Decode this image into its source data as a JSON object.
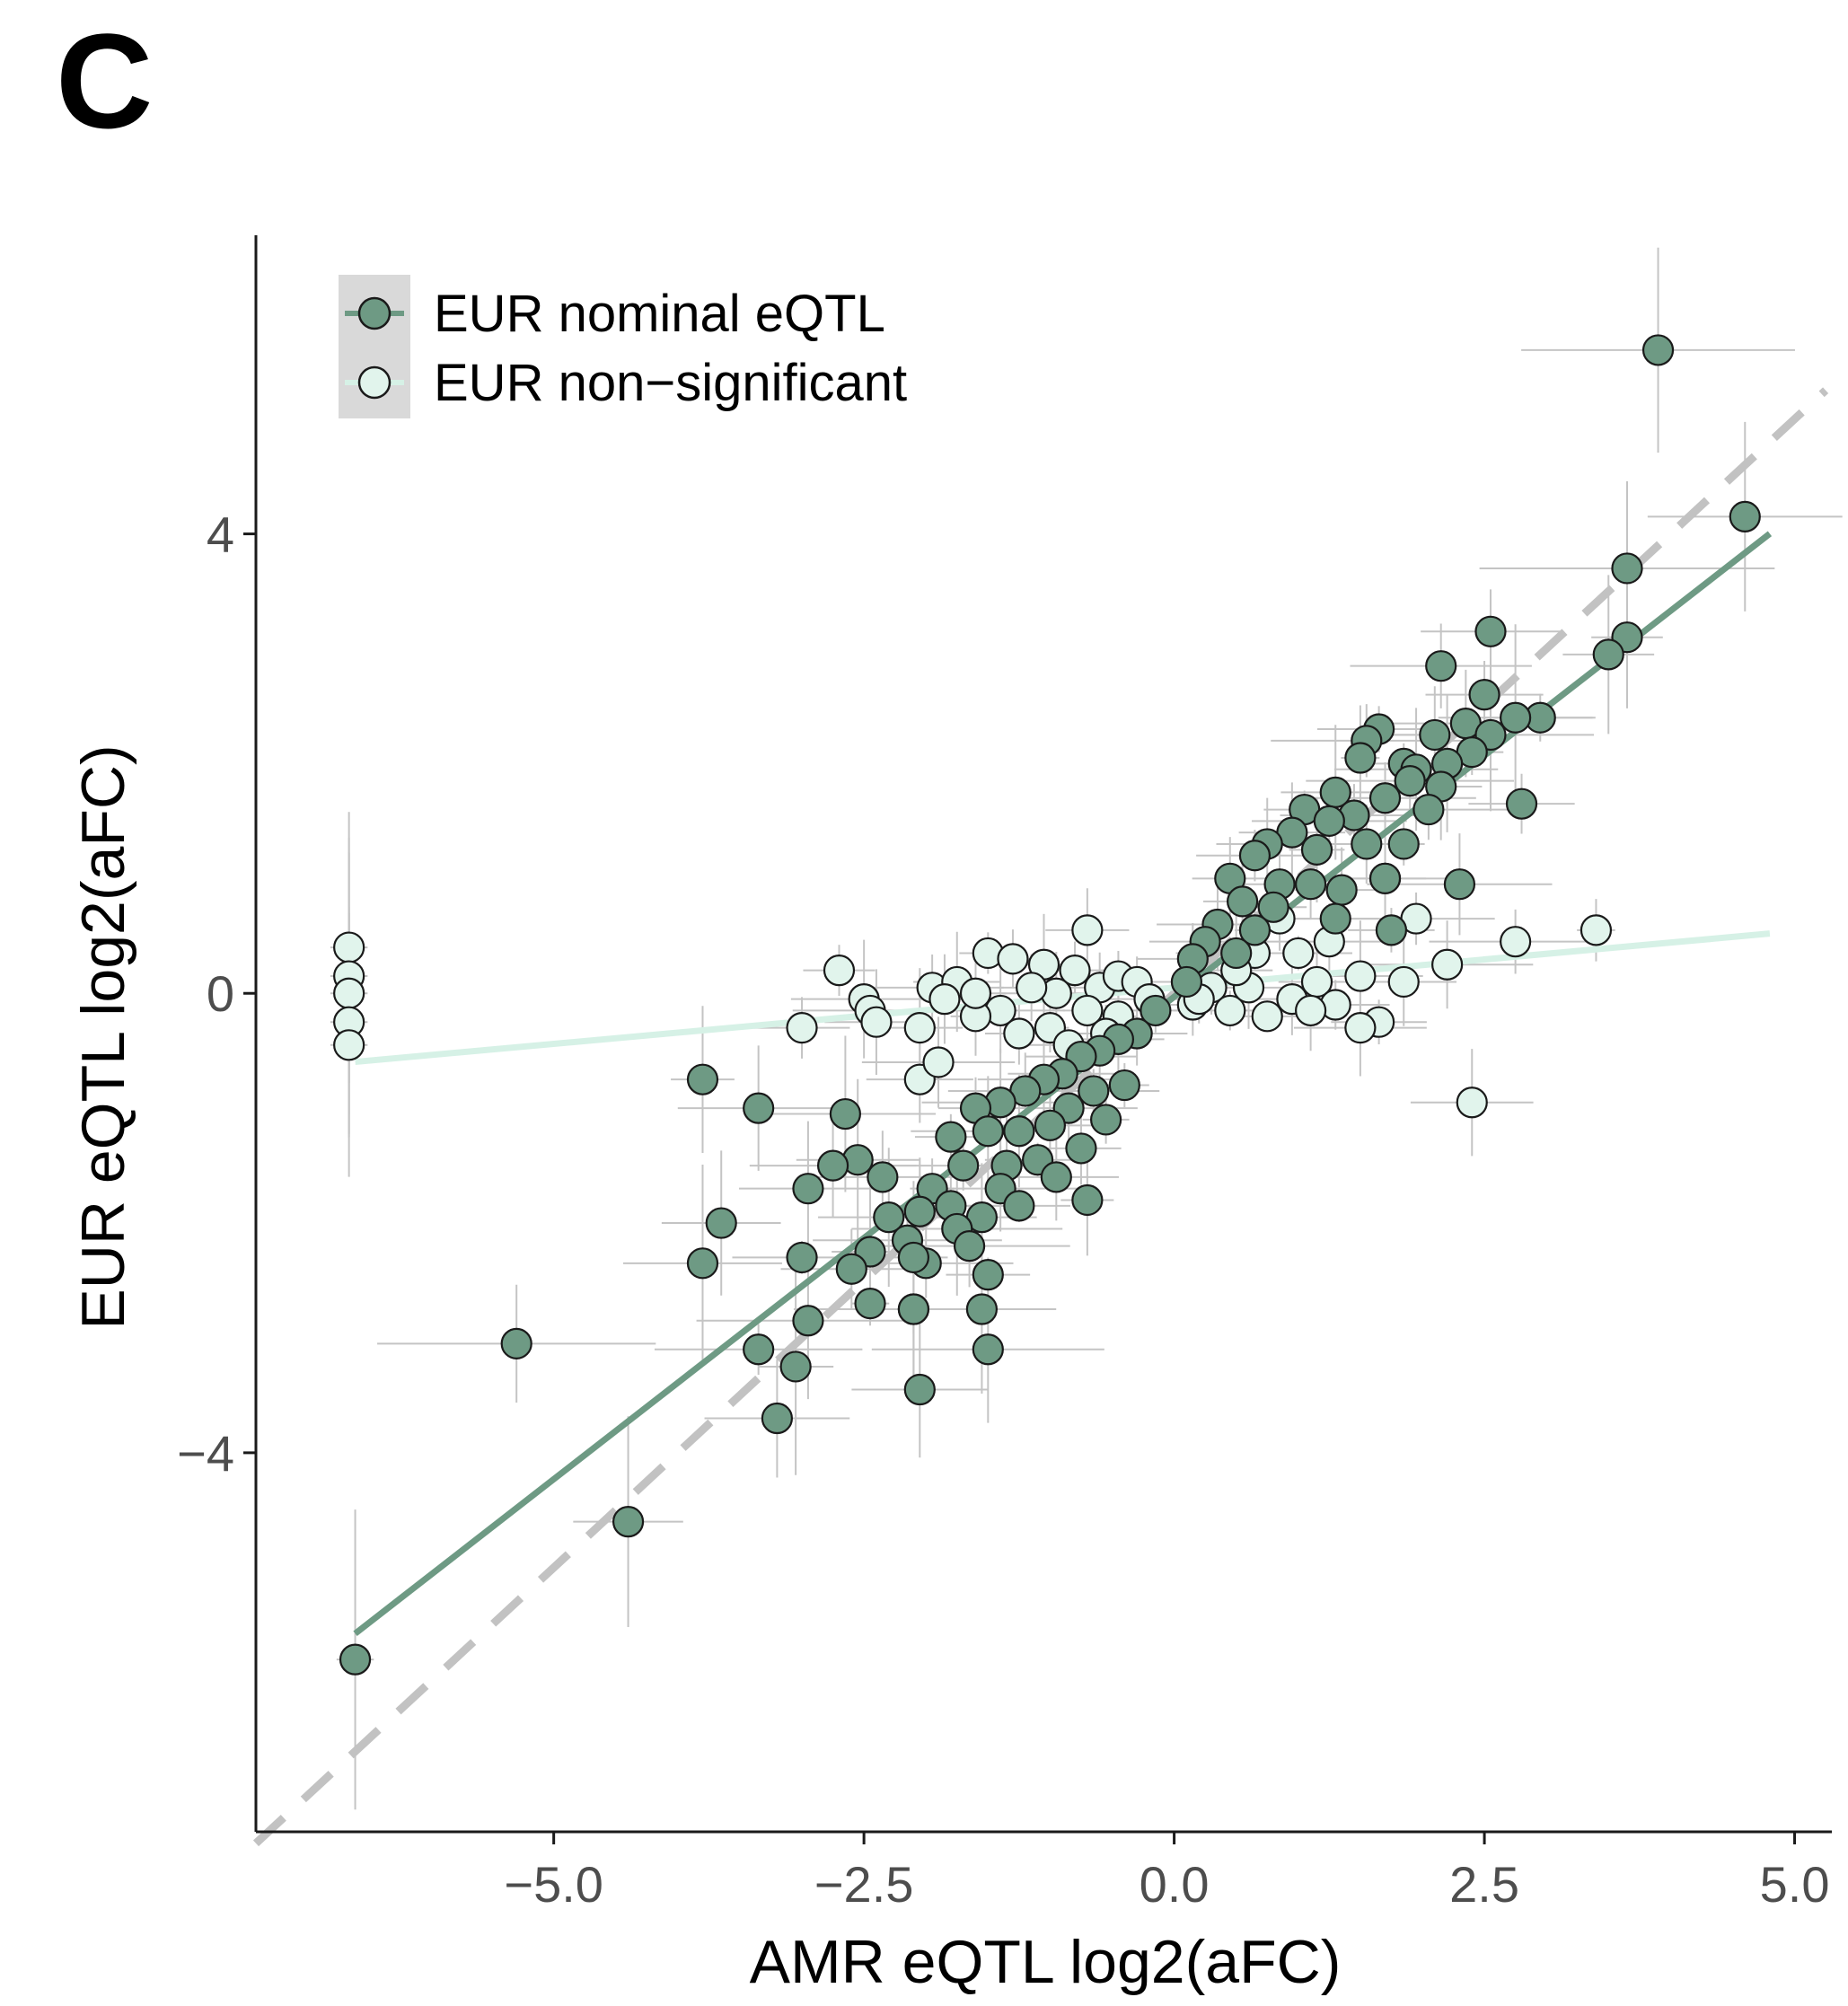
{
  "panel_label": "C",
  "colors": {
    "eqtl_fill": "#6e9a84",
    "eqtl_line": "#6e9a84",
    "nonsig_fill": "#e1f4ec",
    "nonsig_line": "#d6f1e6",
    "point_stroke": "#1a1a1a",
    "errorbar": "#c4c4c4",
    "identity_line": "#c2c2c2",
    "axis": "#1a1a1a",
    "legend_key_bg": "#d9d9d9"
  },
  "chart_data": {
    "type": "scatter",
    "title": "",
    "xlabel": "AMR eQTL log2(aFC)",
    "ylabel": "EUR eQTL log2(aFC)",
    "xlim": [
      -7.4,
      5.3
    ],
    "ylim": [
      -7.3,
      6.6
    ],
    "xticks": [
      -5.0,
      -2.5,
      0.0,
      2.5,
      5.0
    ],
    "xtick_labels": [
      "−5.0",
      "−2.5",
      "0.0",
      "2.5",
      "5.0"
    ],
    "yticks": [
      -4,
      0,
      4
    ],
    "ytick_labels": [
      "−4",
      "0",
      "4"
    ],
    "grid": false,
    "legend_position": "top-left",
    "identity_line": {
      "style": "dashed",
      "slope": 1,
      "intercept": 0
    },
    "series": [
      {
        "name": "EUR nominal eQTL",
        "fit": {
          "x_from": -6.6,
          "x_to": 4.8,
          "slope": 0.84,
          "intercept": -0.03
        },
        "points": [
          [
            3.9,
            5.6
          ],
          [
            4.6,
            4.15
          ],
          [
            3.65,
            3.7
          ],
          [
            3.65,
            3.1
          ],
          [
            3.5,
            2.95
          ],
          [
            2.55,
            3.15
          ],
          [
            2.15,
            2.85
          ],
          [
            2.5,
            2.6
          ],
          [
            2.95,
            2.4
          ],
          [
            2.75,
            2.4
          ],
          [
            2.35,
            2.35
          ],
          [
            2.55,
            2.25
          ],
          [
            2.1,
            2.25
          ],
          [
            1.65,
            2.3
          ],
          [
            1.55,
            2.2
          ],
          [
            1.5,
            2.05
          ],
          [
            1.85,
            2.0
          ],
          [
            2.4,
            2.1
          ],
          [
            2.2,
            2.0
          ],
          [
            1.95,
            1.95
          ],
          [
            2.8,
            1.65
          ],
          [
            1.3,
            1.75
          ],
          [
            1.05,
            1.6
          ],
          [
            1.7,
            1.7
          ],
          [
            1.9,
            1.85
          ],
          [
            2.15,
            1.8
          ],
          [
            2.05,
            1.6
          ],
          [
            1.45,
            1.55
          ],
          [
            1.25,
            1.5
          ],
          [
            0.95,
            1.4
          ],
          [
            0.75,
            1.3
          ],
          [
            0.65,
            1.2
          ],
          [
            1.15,
            1.25
          ],
          [
            1.85,
            1.3
          ],
          [
            1.55,
            1.3
          ],
          [
            0.45,
            1.0
          ],
          [
            0.85,
            0.95
          ],
          [
            1.1,
            0.95
          ],
          [
            1.35,
            0.9
          ],
          [
            1.7,
            1.0
          ],
          [
            2.3,
            0.95
          ],
          [
            0.55,
            0.8
          ],
          [
            0.8,
            0.75
          ],
          [
            1.3,
            0.65
          ],
          [
            0.35,
            0.6
          ],
          [
            0.65,
            0.55
          ],
          [
            1.75,
            0.55
          ],
          [
            0.25,
            0.45
          ],
          [
            0.5,
            0.35
          ],
          [
            0.15,
            0.3
          ],
          [
            0.1,
            0.1
          ],
          [
            -0.15,
            -0.15
          ],
          [
            -0.3,
            -0.35
          ],
          [
            -0.45,
            -0.4
          ],
          [
            -0.6,
            -0.5
          ],
          [
            -0.75,
            -0.55
          ],
          [
            -0.9,
            -0.7
          ],
          [
            -1.05,
            -0.75
          ],
          [
            -1.2,
            -0.85
          ],
          [
            -0.65,
            -0.85
          ],
          [
            -0.4,
            -0.8
          ],
          [
            -1.4,
            -0.95
          ],
          [
            -1.6,
            -1.0
          ],
          [
            -0.85,
            -1.0
          ],
          [
            -1.0,
            -1.15
          ],
          [
            -1.25,
            -1.2
          ],
          [
            -1.5,
            -1.2
          ],
          [
            -1.8,
            -1.25
          ],
          [
            -0.55,
            -1.1
          ],
          [
            -0.75,
            -1.35
          ],
          [
            -1.1,
            -1.45
          ],
          [
            -1.35,
            -1.5
          ],
          [
            -1.7,
            -1.5
          ],
          [
            -1.95,
            -1.7
          ],
          [
            -1.4,
            -1.7
          ],
          [
            -0.95,
            -1.6
          ],
          [
            -0.7,
            -1.8
          ],
          [
            -1.55,
            -1.95
          ],
          [
            -1.8,
            -1.85
          ],
          [
            -2.05,
            -1.9
          ],
          [
            -2.3,
            -1.95
          ],
          [
            -1.25,
            -1.85
          ],
          [
            -1.75,
            -2.05
          ],
          [
            -2.15,
            -2.15
          ],
          [
            -2.45,
            -2.25
          ],
          [
            -1.65,
            -2.2
          ],
          [
            -2.55,
            -1.45
          ],
          [
            -2.35,
            -1.6
          ],
          [
            -2.75,
            -1.5
          ],
          [
            -2.95,
            -1.7
          ],
          [
            -2.0,
            -2.35
          ],
          [
            -1.5,
            -2.45
          ],
          [
            -2.1,
            -2.3
          ],
          [
            -2.6,
            -2.4
          ],
          [
            -2.45,
            -2.7
          ],
          [
            -2.1,
            -2.75
          ],
          [
            -1.55,
            -2.75
          ],
          [
            -2.95,
            -2.85
          ],
          [
            -2.65,
            -1.05
          ],
          [
            -3.35,
            -1.0
          ],
          [
            -3.8,
            -0.75
          ],
          [
            -3.65,
            -2.0
          ],
          [
            -3.8,
            -2.35
          ],
          [
            -3.0,
            -2.3
          ],
          [
            -3.35,
            -3.1
          ],
          [
            -3.05,
            -3.25
          ],
          [
            -3.2,
            -3.7
          ],
          [
            -2.1,
            -2.75
          ],
          [
            -2.05,
            -3.45
          ],
          [
            -1.5,
            -3.1
          ],
          [
            -5.3,
            -3.05
          ],
          [
            -4.4,
            -4.6
          ],
          [
            -6.6,
            -5.8
          ]
        ]
      },
      {
        "name": "EUR non-significant",
        "fit": {
          "x_from": -6.6,
          "x_to": 4.8,
          "slope": 0.098,
          "intercept": 0.05
        },
        "points": [
          [
            -6.65,
            0.4
          ],
          [
            -6.65,
            0.15
          ],
          [
            -6.65,
            0.0
          ],
          [
            -6.65,
            -0.25
          ],
          [
            -6.65,
            -0.45
          ],
          [
            -2.7,
            0.2
          ],
          [
            -2.5,
            -0.05
          ],
          [
            -2.45,
            -0.15
          ],
          [
            -2.4,
            -0.25
          ],
          [
            -3.0,
            -0.3
          ],
          [
            -2.05,
            -0.3
          ],
          [
            -1.95,
            0.05
          ],
          [
            -1.75,
            0.1
          ],
          [
            -1.5,
            0.35
          ],
          [
            -1.3,
            0.3
          ],
          [
            -1.05,
            0.25
          ],
          [
            -0.7,
            0.55
          ],
          [
            -0.8,
            0.2
          ],
          [
            -0.95,
            0.0
          ],
          [
            -1.15,
            0.05
          ],
          [
            -1.4,
            -0.15
          ],
          [
            -1.6,
            -0.2
          ],
          [
            -1.85,
            -0.05
          ],
          [
            -0.6,
            0.05
          ],
          [
            -0.45,
            0.15
          ],
          [
            -0.3,
            0.1
          ],
          [
            -0.2,
            -0.05
          ],
          [
            -0.45,
            -0.2
          ],
          [
            -0.7,
            -0.15
          ],
          [
            -1.0,
            -0.3
          ],
          [
            -1.25,
            -0.35
          ],
          [
            -1.6,
            0.0
          ],
          [
            -2.05,
            -0.75
          ],
          [
            -1.9,
            -0.6
          ],
          [
            -0.85,
            -0.45
          ],
          [
            -0.55,
            -0.35
          ],
          [
            0.15,
            -0.1
          ],
          [
            0.3,
            0.05
          ],
          [
            0.45,
            -0.15
          ],
          [
            0.6,
            0.05
          ],
          [
            0.75,
            -0.2
          ],
          [
            0.95,
            -0.05
          ],
          [
            1.15,
            0.1
          ],
          [
            1.3,
            -0.1
          ],
          [
            1.5,
            0.15
          ],
          [
            1.65,
            -0.25
          ],
          [
            1.85,
            0.1
          ],
          [
            1.25,
            0.45
          ],
          [
            1.0,
            0.35
          ],
          [
            0.65,
            0.35
          ],
          [
            0.85,
            0.65
          ],
          [
            1.7,
            1.0
          ],
          [
            1.95,
            0.65
          ],
          [
            0.2,
            -0.05
          ],
          [
            0.5,
            0.2
          ],
          [
            1.1,
            -0.15
          ],
          [
            1.5,
            -0.3
          ],
          [
            2.2,
            0.25
          ],
          [
            2.75,
            0.45
          ],
          [
            3.4,
            0.55
          ],
          [
            2.4,
            -0.95
          ]
        ]
      }
    ]
  },
  "legend": {
    "items": [
      {
        "label": "EUR nominal eQTL"
      },
      {
        "label": "EUR non−significant"
      }
    ]
  }
}
